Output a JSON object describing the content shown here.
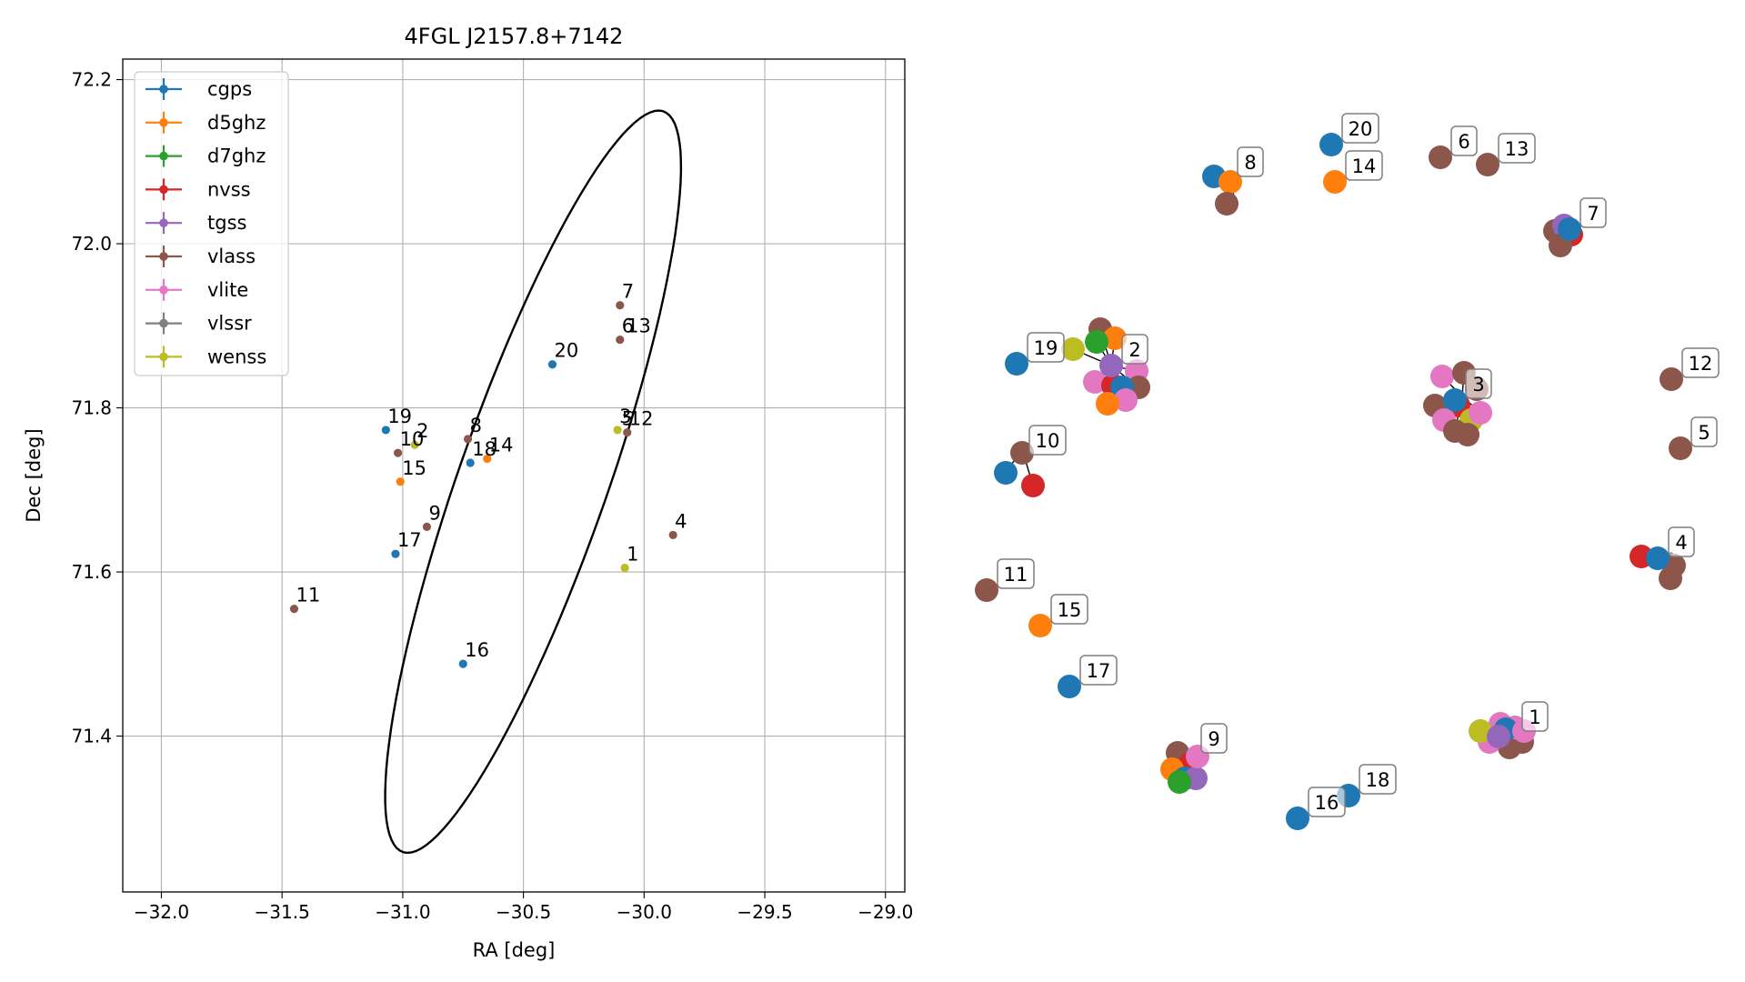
{
  "chart_data": [
    {
      "type": "scatter",
      "title": "4FGL J2157.8+7142",
      "xlabel": "RA [deg]",
      "ylabel": "Dec [deg]",
      "xlim": [
        -32.16,
        -28.92
      ],
      "ylim": [
        71.21,
        72.225
      ],
      "xticks": [
        -32.0,
        -31.5,
        -31.0,
        -30.5,
        -30.0,
        -29.5,
        -29.0
      ],
      "xtick_labels": [
        "−32.0",
        "−31.5",
        "−31.0",
        "−30.5",
        "−30.0",
        "−29.5",
        "−29.0"
      ],
      "yticks": [
        71.4,
        71.6,
        71.8,
        72.0,
        72.2
      ],
      "ytick_labels": [
        "71.4",
        "71.6",
        "71.8",
        "72.0",
        "72.2"
      ],
      "grid": true,
      "legend_position": "top-left",
      "error_ellipse": {
        "center": [
          -30.46,
          71.71
        ],
        "ra_semi": 0.735,
        "dec_semi": 0.2,
        "angle_deg": 35
      },
      "series": [
        {
          "name": "cgps",
          "color": "#1f77b4",
          "points": [
            [
              -30.38,
              71.853
            ],
            [
              -31.07,
              71.773
            ],
            [
              -30.72,
              71.733
            ],
            [
              -31.03,
              71.622
            ],
            [
              -30.75,
              71.488
            ]
          ]
        },
        {
          "name": "d5ghz",
          "color": "#ff7f0e",
          "points": [
            [
              -30.65,
              71.738
            ],
            [
              -31.01,
              71.71
            ]
          ]
        },
        {
          "name": "d7ghz",
          "color": "#2ca02c",
          "points": []
        },
        {
          "name": "nvss",
          "color": "#d62728",
          "points": []
        },
        {
          "name": "tgss",
          "color": "#9467bd",
          "points": []
        },
        {
          "name": "vlass",
          "color": "#8c564b",
          "points": [
            [
              -30.1,
              71.925
            ],
            [
              -30.1,
              71.883
            ],
            [
              -30.07,
              71.77
            ],
            [
              -30.73,
              71.762
            ],
            [
              -31.02,
              71.745
            ],
            [
              -30.9,
              71.655
            ],
            [
              -29.88,
              71.645
            ],
            [
              -31.45,
              71.555
            ]
          ]
        },
        {
          "name": "vlite",
          "color": "#e377c2",
          "points": []
        },
        {
          "name": "vlssr",
          "color": "#7f7f7f",
          "points": []
        },
        {
          "name": "wenss",
          "color": "#bcbd22",
          "points": [
            [
              -30.11,
              71.773
            ],
            [
              -30.95,
              71.755
            ],
            [
              -30.08,
              71.605
            ]
          ]
        }
      ],
      "annotations": [
        {
          "text": "7",
          "x": -30.1,
          "y": 71.925
        },
        {
          "text": "6",
          "x": -30.1,
          "y": 71.883
        },
        {
          "text": "13",
          "x": -30.08,
          "y": 71.883
        },
        {
          "text": "20",
          "x": -30.38,
          "y": 71.853
        },
        {
          "text": "3",
          "x": -30.11,
          "y": 71.773
        },
        {
          "text": "5",
          "x": -30.1,
          "y": 71.77
        },
        {
          "text": "12",
          "x": -30.07,
          "y": 71.77
        },
        {
          "text": "19",
          "x": -31.07,
          "y": 71.773
        },
        {
          "text": "2",
          "x": -30.95,
          "y": 71.755
        },
        {
          "text": "10",
          "x": -31.02,
          "y": 71.745
        },
        {
          "text": "8",
          "x": -30.73,
          "y": 71.762
        },
        {
          "text": "14",
          "x": -30.65,
          "y": 71.738
        },
        {
          "text": "18",
          "x": -30.72,
          "y": 71.733
        },
        {
          "text": "15",
          "x": -31.01,
          "y": 71.71
        },
        {
          "text": "9",
          "x": -30.9,
          "y": 71.655
        },
        {
          "text": "4",
          "x": -29.88,
          "y": 71.645
        },
        {
          "text": "17",
          "x": -31.03,
          "y": 71.622
        },
        {
          "text": "1",
          "x": -30.08,
          "y": 71.605
        },
        {
          "text": "11",
          "x": -31.45,
          "y": 71.555
        },
        {
          "text": "16",
          "x": -30.75,
          "y": 71.488
        }
      ]
    },
    {
      "type": "scatter",
      "title": "",
      "groups": [
        {
          "label": "1",
          "leader": [
            -0.25,
            -0.1
          ],
          "points": [
            [
              "vlite",
              -0.3,
              -0.25
            ],
            [
              "nvss",
              0.12,
              0.15
            ],
            [
              "vlass",
              -0.05,
              0.4
            ],
            [
              "vlass",
              0.3,
              0.25
            ],
            [
              "vlite",
              0.1,
              -0.15
            ],
            [
              "cgps",
              -0.15,
              -0.1
            ],
            [
              "vlite",
              -0.6,
              0.25
            ],
            [
              "wenss",
              -0.85,
              -0.05
            ],
            [
              "vlite",
              0.35,
              -0.05
            ],
            [
              "tgss",
              -0.35,
              0.1
            ]
          ]
        },
        {
          "label": "2",
          "leader": [
            0,
            0
          ],
          "points": [
            [
              "vlass",
              -0.3,
              -1.0
            ],
            [
              "d5ghz",
              0.1,
              -0.75
            ],
            [
              "d7ghz",
              -0.4,
              -0.65
            ],
            [
              "wenss",
              -1.05,
              -0.45
            ],
            [
              "vlite",
              0.7,
              0.15
            ],
            [
              "vlite",
              -0.45,
              0.45
            ],
            [
              "nvss",
              0.05,
              0.55
            ],
            [
              "vlass",
              0.75,
              0.6
            ],
            [
              "cgps",
              0.3,
              0.6
            ],
            [
              "vlite",
              0.4,
              0.95
            ],
            [
              "d5ghz",
              -0.1,
              1.05
            ],
            [
              "tgss",
              0,
              0
            ]
          ]
        },
        {
          "label": "3",
          "leader": [
            0.2,
            -0.1
          ],
          "points": [
            [
              "vlite",
              -0.35,
              -0.65
            ],
            [
              "vlass",
              0.25,
              -0.75
            ],
            [
              "nvss",
              0.1,
              0.15
            ],
            [
              "vlass",
              -0.55,
              0.15
            ],
            [
              "cgps",
              0,
              0
            ],
            [
              "vlite",
              -0.3,
              0.55
            ],
            [
              "wenss",
              0.45,
              0.55
            ],
            [
              "vlite",
              0.7,
              0.35
            ],
            [
              "vlass",
              0,
              0.85
            ],
            [
              "vlass",
              0.35,
              0.95
            ],
            [
              "vlass",
              0.6,
              -0.3
            ]
          ]
        },
        {
          "label": "4",
          "leader": [
            0.4,
            -0.15
          ],
          "points": [
            [
              "vlass",
              0.45,
              0.2
            ],
            [
              "nvss",
              -0.45,
              -0.05
            ],
            [
              "vlass",
              0.35,
              0.55
            ],
            [
              "cgps",
              0,
              0
            ]
          ]
        },
        {
          "label": "5",
          "leader": [
            0,
            0
          ],
          "points": [
            [
              "vlass",
              0,
              0
            ]
          ]
        },
        {
          "label": "6",
          "leader": [
            0,
            0
          ],
          "points": [
            [
              "vlass",
              0,
              0
            ]
          ]
        },
        {
          "label": "7",
          "leader": [
            -0.05,
            0.05
          ],
          "points": [
            [
              "vlass",
              -0.4,
              0.05
            ],
            [
              "tgss",
              -0.15,
              -0.1
            ],
            [
              "nvss",
              0.05,
              0.15
            ],
            [
              "vlass",
              -0.25,
              0.45
            ],
            [
              "cgps",
              0,
              0
            ]
          ]
        },
        {
          "label": "8",
          "leader": [
            0.2,
            0.5
          ],
          "points": [
            [
              "cgps",
              -0.35,
              -0.05
            ],
            [
              "d5ghz",
              0.1,
              0.1
            ],
            [
              "vlass",
              0,
              0.7
            ]
          ]
        },
        {
          "label": "9",
          "leader": [
            0,
            0
          ],
          "points": [
            [
              "vlass",
              -0.35,
              -0.05
            ],
            [
              "nvss",
              0,
              0.25
            ],
            [
              "d5ghz",
              -0.5,
              0.4
            ],
            [
              "cgps",
              -0.15,
              0.65
            ],
            [
              "tgss",
              0.15,
              0.65
            ],
            [
              "d7ghz",
              -0.3,
              0.75
            ],
            [
              "vlite",
              0.2,
              0.05
            ]
          ]
        },
        {
          "label": "10",
          "leader": [
            0.1,
            -0.2
          ],
          "points": [
            [
              "vlass",
              0.1,
              -0.1
            ],
            [
              "cgps",
              -0.35,
              0.45
            ],
            [
              "nvss",
              0.4,
              0.8
            ]
          ]
        },
        {
          "label": "11",
          "leader": [
            0,
            0
          ],
          "points": [
            [
              "vlass",
              0,
              0
            ]
          ]
        },
        {
          "label": "12",
          "leader": [
            0,
            0
          ],
          "points": [
            [
              "vlass",
              0,
              0
            ]
          ]
        },
        {
          "label": "13",
          "leader": [
            0,
            0
          ],
          "points": [
            [
              "vlass",
              0,
              0
            ]
          ]
        },
        {
          "label": "14",
          "leader": [
            0,
            0
          ],
          "points": [
            [
              "d5ghz",
              0,
              0
            ]
          ]
        },
        {
          "label": "15",
          "leader": [
            0,
            0
          ],
          "points": [
            [
              "d5ghz",
              0,
              0
            ]
          ]
        },
        {
          "label": "16",
          "leader": [
            0,
            0
          ],
          "points": [
            [
              "cgps",
              0,
              0
            ]
          ]
        },
        {
          "label": "17",
          "leader": [
            0,
            0
          ],
          "points": [
            [
              "cgps",
              0,
              0
            ]
          ]
        },
        {
          "label": "18",
          "leader": [
            0,
            0
          ],
          "points": [
            [
              "cgps",
              0,
              0
            ]
          ]
        },
        {
          "label": "19",
          "leader": [
            0,
            0
          ],
          "points": [
            [
              "cgps",
              0,
              0
            ]
          ]
        },
        {
          "label": "20",
          "leader": [
            0,
            0
          ],
          "points": [
            [
              "cgps",
              0,
              0
            ]
          ]
        }
      ]
    }
  ]
}
